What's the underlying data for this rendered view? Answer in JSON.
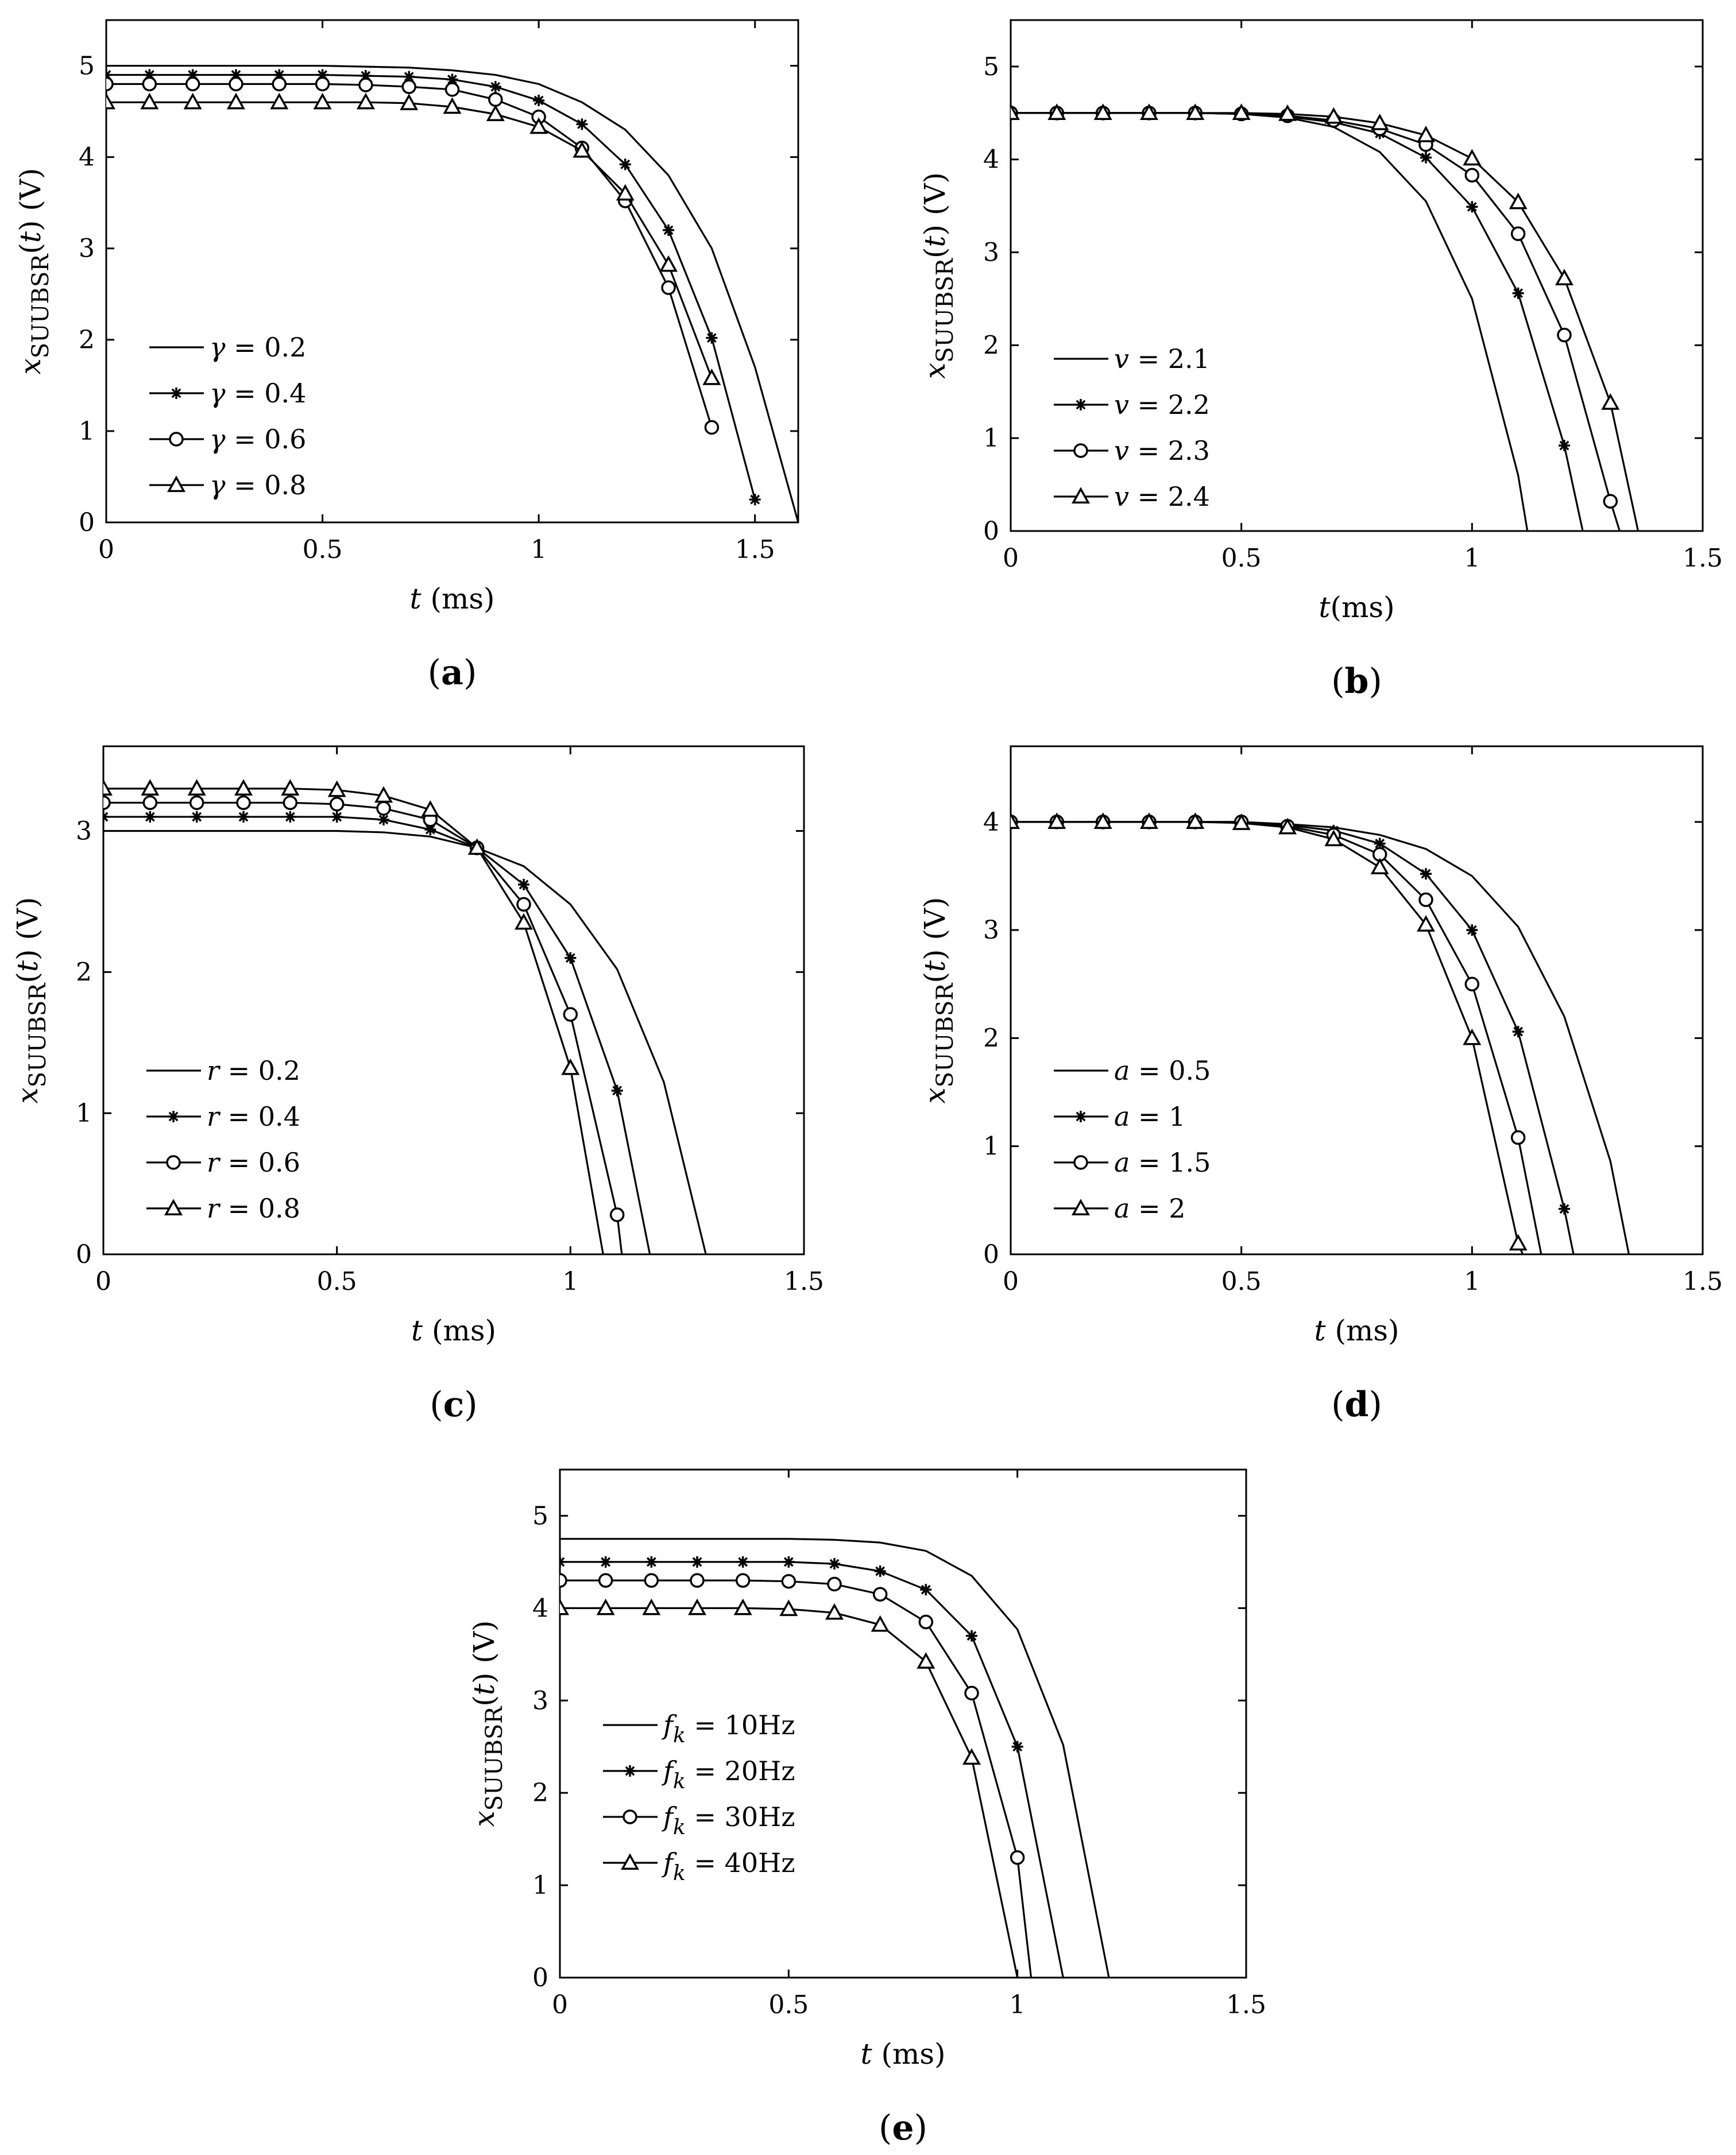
{
  "figure": {
    "chart_data": [
      {
        "panel": "a",
        "type": "line",
        "title": "",
        "xlabel": "t (ms)",
        "ylabel": "x_SUUBSR(t) (V)",
        "xlim": [
          0,
          1.6
        ],
        "ylim": [
          0,
          5.5
        ],
        "xticks": [
          0,
          0.5,
          1,
          1.5
        ],
        "xtick_labels": [
          "0",
          "0.5",
          "1",
          "1.5"
        ],
        "yticks": [
          0,
          1,
          2,
          3,
          4,
          5
        ],
        "ytick_labels": [
          "0",
          "1",
          "2",
          "3",
          "4",
          "5"
        ],
        "legend_position": "middle-left",
        "series": [
          {
            "name": "γ = 0.2",
            "sym": "γ",
            "val": "0.2",
            "marker": "none",
            "x": [
              0,
              0.1,
              0.2,
              0.3,
              0.4,
              0.5,
              0.6,
              0.7,
              0.8,
              0.9,
              1.0,
              1.1,
              1.2,
              1.3,
              1.4,
              1.5,
              1.6
            ],
            "y": [
              5.0,
              5.0,
              5.0,
              5.0,
              5.0,
              5.0,
              4.99,
              4.98,
              4.95,
              4.9,
              4.8,
              4.6,
              4.3,
              3.8,
              3.0,
              1.7,
              0
            ]
          },
          {
            "name": "γ = 0.4",
            "sym": "γ",
            "val": "0.4",
            "marker": "star",
            "x": [
              0,
              0.1,
              0.2,
              0.3,
              0.4,
              0.5,
              0.6,
              0.7,
              0.8,
              0.9,
              1.0,
              1.1,
              1.2,
              1.3,
              1.4,
              1.5
            ],
            "y": [
              4.9,
              4.9,
              4.9,
              4.9,
              4.9,
              4.9,
              4.89,
              4.88,
              4.85,
              4.77,
              4.62,
              4.36,
              3.92,
              3.2,
              2.02,
              0.25
            ]
          },
          {
            "name": "γ = 0.6",
            "sym": "γ",
            "val": "0.6",
            "marker": "circle",
            "x": [
              0,
              0.1,
              0.2,
              0.3,
              0.4,
              0.5,
              0.6,
              0.7,
              0.8,
              0.9,
              1.0,
              1.1,
              1.2,
              1.3,
              1.4
            ],
            "y": [
              4.8,
              4.8,
              4.8,
              4.8,
              4.8,
              4.8,
              4.79,
              4.77,
              4.74,
              4.63,
              4.44,
              4.1,
              3.52,
              2.57,
              1.04
            ]
          },
          {
            "name": "γ = 0.8",
            "sym": "γ",
            "val": "0.8",
            "marker": "triangle",
            "x": [
              0,
              0.1,
              0.2,
              0.3,
              0.4,
              0.5,
              0.6,
              0.7,
              0.8,
              0.9,
              1.0,
              1.1,
              1.2,
              1.3,
              1.4
            ],
            "y": [
              4.6,
              4.6,
              4.6,
              4.6,
              4.6,
              4.6,
              4.6,
              4.59,
              4.55,
              4.47,
              4.33,
              4.07,
              3.6,
              2.82,
              1.58
            ]
          }
        ]
      },
      {
        "panel": "b",
        "type": "line",
        "title": "",
        "xlabel": "t(ms)",
        "ylabel": "x_SUUBSR(t) (V)",
        "xlim": [
          0,
          1.5
        ],
        "ylim": [
          0,
          5.5
        ],
        "xticks": [
          0,
          0.5,
          1,
          1.5
        ],
        "xtick_labels": [
          "0",
          "0.5",
          "1",
          "1.5"
        ],
        "yticks": [
          0,
          1,
          2,
          3,
          4,
          5
        ],
        "ytick_labels": [
          "0",
          "1",
          "2",
          "3",
          "4",
          "5"
        ],
        "legend_position": "bottom-left",
        "series": [
          {
            "name": "v = 2.1",
            "sym": "v",
            "val": "2.1",
            "marker": "none",
            "x": [
              0,
              0.1,
              0.2,
              0.3,
              0.4,
              0.5,
              0.6,
              0.7,
              0.8,
              0.9,
              1.0,
              1.1,
              1.12
            ],
            "y": [
              4.5,
              4.5,
              4.5,
              4.5,
              4.5,
              4.49,
              4.45,
              4.35,
              4.08,
              3.55,
              2.5,
              0.6,
              0
            ]
          },
          {
            "name": "v = 2.2",
            "sym": "v",
            "val": "2.2",
            "marker": "star",
            "x": [
              0,
              0.1,
              0.2,
              0.3,
              0.4,
              0.5,
              0.6,
              0.7,
              0.8,
              0.9,
              1.0,
              1.1,
              1.2,
              1.24
            ],
            "y": [
              4.5,
              4.5,
              4.5,
              4.5,
              4.5,
              4.49,
              4.46,
              4.4,
              4.28,
              4.02,
              3.49,
              2.56,
              0.92,
              0
            ]
          },
          {
            "name": "v = 2.3",
            "sym": "v",
            "val": "2.3",
            "marker": "circle",
            "x": [
              0,
              0.1,
              0.2,
              0.3,
              0.4,
              0.5,
              0.6,
              0.7,
              0.8,
              0.9,
              1.0,
              1.1,
              1.2,
              1.3,
              1.32
            ],
            "y": [
              4.5,
              4.5,
              4.5,
              4.5,
              4.5,
              4.49,
              4.47,
              4.42,
              4.33,
              4.16,
              3.83,
              3.2,
              2.11,
              0.32,
              0
            ]
          },
          {
            "name": "v = 2.4",
            "sym": "v",
            "val": "2.4",
            "marker": "triangle",
            "x": [
              0,
              0.1,
              0.2,
              0.3,
              0.4,
              0.5,
              0.6,
              0.7,
              0.8,
              0.9,
              1.0,
              1.1,
              1.2,
              1.3,
              1.36
            ],
            "y": [
              4.5,
              4.5,
              4.5,
              4.5,
              4.5,
              4.5,
              4.49,
              4.46,
              4.39,
              4.26,
              4.01,
              3.54,
              2.72,
              1.38,
              0
            ]
          }
        ]
      },
      {
        "panel": "c",
        "type": "line",
        "title": "",
        "xlabel": "t (ms)",
        "ylabel": "x_SUUBSR(t) (V)",
        "xlim": [
          0,
          1.5
        ],
        "ylim": [
          0,
          3.6
        ],
        "xticks": [
          0,
          0.5,
          1,
          1.5
        ],
        "xtick_labels": [
          "0",
          "0.5",
          "1",
          "1.5"
        ],
        "yticks": [
          0,
          1,
          2,
          3
        ],
        "ytick_labels": [
          "0",
          "1",
          "2",
          "3"
        ],
        "legend_position": "bottom-left",
        "series": [
          {
            "name": "r = 0.2",
            "sym": "r",
            "val": "0.2",
            "marker": "none",
            "x": [
              0,
              0.1,
              0.2,
              0.3,
              0.4,
              0.5,
              0.6,
              0.7,
              0.8,
              0.9,
              1.0,
              1.1,
              1.2,
              1.29
            ],
            "y": [
              3.0,
              3.0,
              3.0,
              3.0,
              3.0,
              3.0,
              2.99,
              2.96,
              2.88,
              2.75,
              2.48,
              2.02,
              1.22,
              0
            ]
          },
          {
            "name": "r = 0.4",
            "sym": "r",
            "val": "0.4",
            "marker": "star",
            "x": [
              0,
              0.1,
              0.2,
              0.3,
              0.4,
              0.5,
              0.6,
              0.7,
              0.8,
              0.9,
              1.0,
              1.1,
              1.17
            ],
            "y": [
              3.1,
              3.1,
              3.1,
              3.1,
              3.1,
              3.1,
              3.08,
              3.01,
              2.88,
              2.62,
              2.1,
              1.16,
              0
            ]
          },
          {
            "name": "r = 0.6",
            "sym": "r",
            "val": "0.6",
            "marker": "circle",
            "x": [
              0,
              0.1,
              0.2,
              0.3,
              0.4,
              0.5,
              0.6,
              0.7,
              0.8,
              0.9,
              1.0,
              1.1,
              1.11
            ],
            "y": [
              3.2,
              3.2,
              3.2,
              3.2,
              3.2,
              3.19,
              3.16,
              3.08,
              2.88,
              2.48,
              1.7,
              0.28,
              0
            ]
          },
          {
            "name": "r = 0.8",
            "sym": "r",
            "val": "0.8",
            "marker": "triangle",
            "x": [
              0,
              0.1,
              0.2,
              0.3,
              0.4,
              0.5,
              0.6,
              0.7,
              0.8,
              0.9,
              1.0,
              1.07
            ],
            "y": [
              3.3,
              3.3,
              3.3,
              3.3,
              3.3,
              3.29,
              3.25,
              3.15,
              2.88,
              2.35,
              1.32,
              0
            ]
          }
        ]
      },
      {
        "panel": "d",
        "type": "line",
        "title": "",
        "xlabel": "t (ms)",
        "ylabel": "x_SUUBSR(t) (V)",
        "xlim": [
          0,
          1.5
        ],
        "ylim": [
          0,
          4.7
        ],
        "xticks": [
          0,
          0.5,
          1,
          1.5
        ],
        "xtick_labels": [
          "0",
          "0.5",
          "1",
          "1.5"
        ],
        "yticks": [
          0,
          1,
          2,
          3,
          4
        ],
        "ytick_labels": [
          "0",
          "1",
          "2",
          "3",
          "4"
        ],
        "legend_position": "bottom-left",
        "series": [
          {
            "name": "a = 0.5",
            "sym": "a",
            "val": "0.5",
            "marker": "none",
            "x": [
              0,
              0.1,
              0.2,
              0.3,
              0.4,
              0.5,
              0.6,
              0.7,
              0.8,
              0.9,
              1.0,
              1.1,
              1.2,
              1.3,
              1.34
            ],
            "y": [
              4.0,
              4.0,
              4.0,
              4.0,
              4.0,
              4.0,
              3.98,
              3.95,
              3.88,
              3.75,
              3.5,
              3.03,
              2.2,
              0.86,
              0
            ]
          },
          {
            "name": "a = 1",
            "sym": "a",
            "val": "1",
            "marker": "star",
            "x": [
              0,
              0.1,
              0.2,
              0.3,
              0.4,
              0.5,
              0.6,
              0.7,
              0.8,
              0.9,
              1.0,
              1.1,
              1.2,
              1.22
            ],
            "y": [
              4.0,
              4.0,
              4.0,
              4.0,
              4.0,
              4.0,
              3.97,
              3.92,
              3.8,
              3.52,
              3.0,
              2.06,
              0.42,
              0
            ]
          },
          {
            "name": "a = 1.5",
            "sym": "a",
            "val": "1.5",
            "marker": "circle",
            "x": [
              0,
              0.1,
              0.2,
              0.3,
              0.4,
              0.5,
              0.6,
              0.7,
              0.8,
              0.9,
              1.0,
              1.1,
              1.15
            ],
            "y": [
              4.0,
              4.0,
              4.0,
              4.0,
              4.0,
              4.0,
              3.96,
              3.88,
              3.7,
              3.28,
              2.5,
              1.08,
              0
            ]
          },
          {
            "name": "a = 2",
            "sym": "a",
            "val": "2",
            "marker": "triangle",
            "x": [
              0,
              0.1,
              0.2,
              0.3,
              0.4,
              0.5,
              0.6,
              0.7,
              0.8,
              0.9,
              1.0,
              1.1,
              1.11
            ],
            "y": [
              4.0,
              4.0,
              4.0,
              4.0,
              4.0,
              3.99,
              3.95,
              3.84,
              3.58,
              3.05,
              2.0,
              0.1,
              0
            ]
          }
        ]
      },
      {
        "panel": "e",
        "type": "line",
        "title": "",
        "xlabel": "t (ms)",
        "ylabel": "x_SUUBSR(t) (V)",
        "xlim": [
          0,
          1.5
        ],
        "ylim": [
          0,
          5.5
        ],
        "xticks": [
          0,
          0.5,
          1,
          1.5
        ],
        "xtick_labels": [
          "0",
          "0.5",
          "1",
          "1.5"
        ],
        "yticks": [
          0,
          1,
          2,
          3,
          4,
          5
        ],
        "ytick_labels": [
          "0",
          "1",
          "2",
          "3",
          "4",
          "5"
        ],
        "legend_position": "bottom-left",
        "series": [
          {
            "name": "fk = 10Hz",
            "sym": "f",
            "sub": "k",
            "val": "10Hz",
            "marker": "none",
            "x": [
              0,
              0.1,
              0.2,
              0.3,
              0.4,
              0.5,
              0.6,
              0.7,
              0.8,
              0.9,
              1.0,
              1.1,
              1.2
            ],
            "y": [
              4.75,
              4.75,
              4.75,
              4.75,
              4.75,
              4.75,
              4.74,
              4.71,
              4.62,
              4.35,
              3.77,
              2.52,
              0
            ]
          },
          {
            "name": "fk = 20Hz",
            "sym": "f",
            "sub": "k",
            "val": "20Hz",
            "marker": "star",
            "x": [
              0,
              0.1,
              0.2,
              0.3,
              0.4,
              0.5,
              0.6,
              0.7,
              0.8,
              0.9,
              1.0,
              1.1
            ],
            "y": [
              4.5,
              4.5,
              4.5,
              4.5,
              4.5,
              4.5,
              4.48,
              4.4,
              4.2,
              3.7,
              2.5,
              0
            ]
          },
          {
            "name": "fk = 30Hz",
            "sym": "f",
            "sub": "k",
            "val": "30Hz",
            "marker": "circle",
            "x": [
              0,
              0.1,
              0.2,
              0.3,
              0.4,
              0.5,
              0.6,
              0.7,
              0.8,
              0.9,
              1.0,
              1.03
            ],
            "y": [
              4.3,
              4.3,
              4.3,
              4.3,
              4.3,
              4.29,
              4.26,
              4.15,
              3.85,
              3.08,
              1.3,
              0
            ]
          },
          {
            "name": "fk = 40Hz",
            "sym": "f",
            "sub": "k",
            "val": "40Hz",
            "marker": "triangle",
            "x": [
              0,
              0.1,
              0.2,
              0.3,
              0.4,
              0.5,
              0.6,
              0.7,
              0.8,
              0.9,
              1.0
            ],
            "y": [
              4.0,
              4.0,
              4.0,
              4.0,
              4.0,
              3.99,
              3.95,
              3.82,
              3.42,
              2.38,
              0
            ]
          }
        ]
      }
    ],
    "panel_labels": [
      "(a)",
      "(b)",
      "(c)",
      "(d)",
      "(e)"
    ],
    "ylabel_parts": {
      "var": "x",
      "sub": "SUUBSR",
      "arg": "(t)",
      "unit": " (V)"
    }
  }
}
